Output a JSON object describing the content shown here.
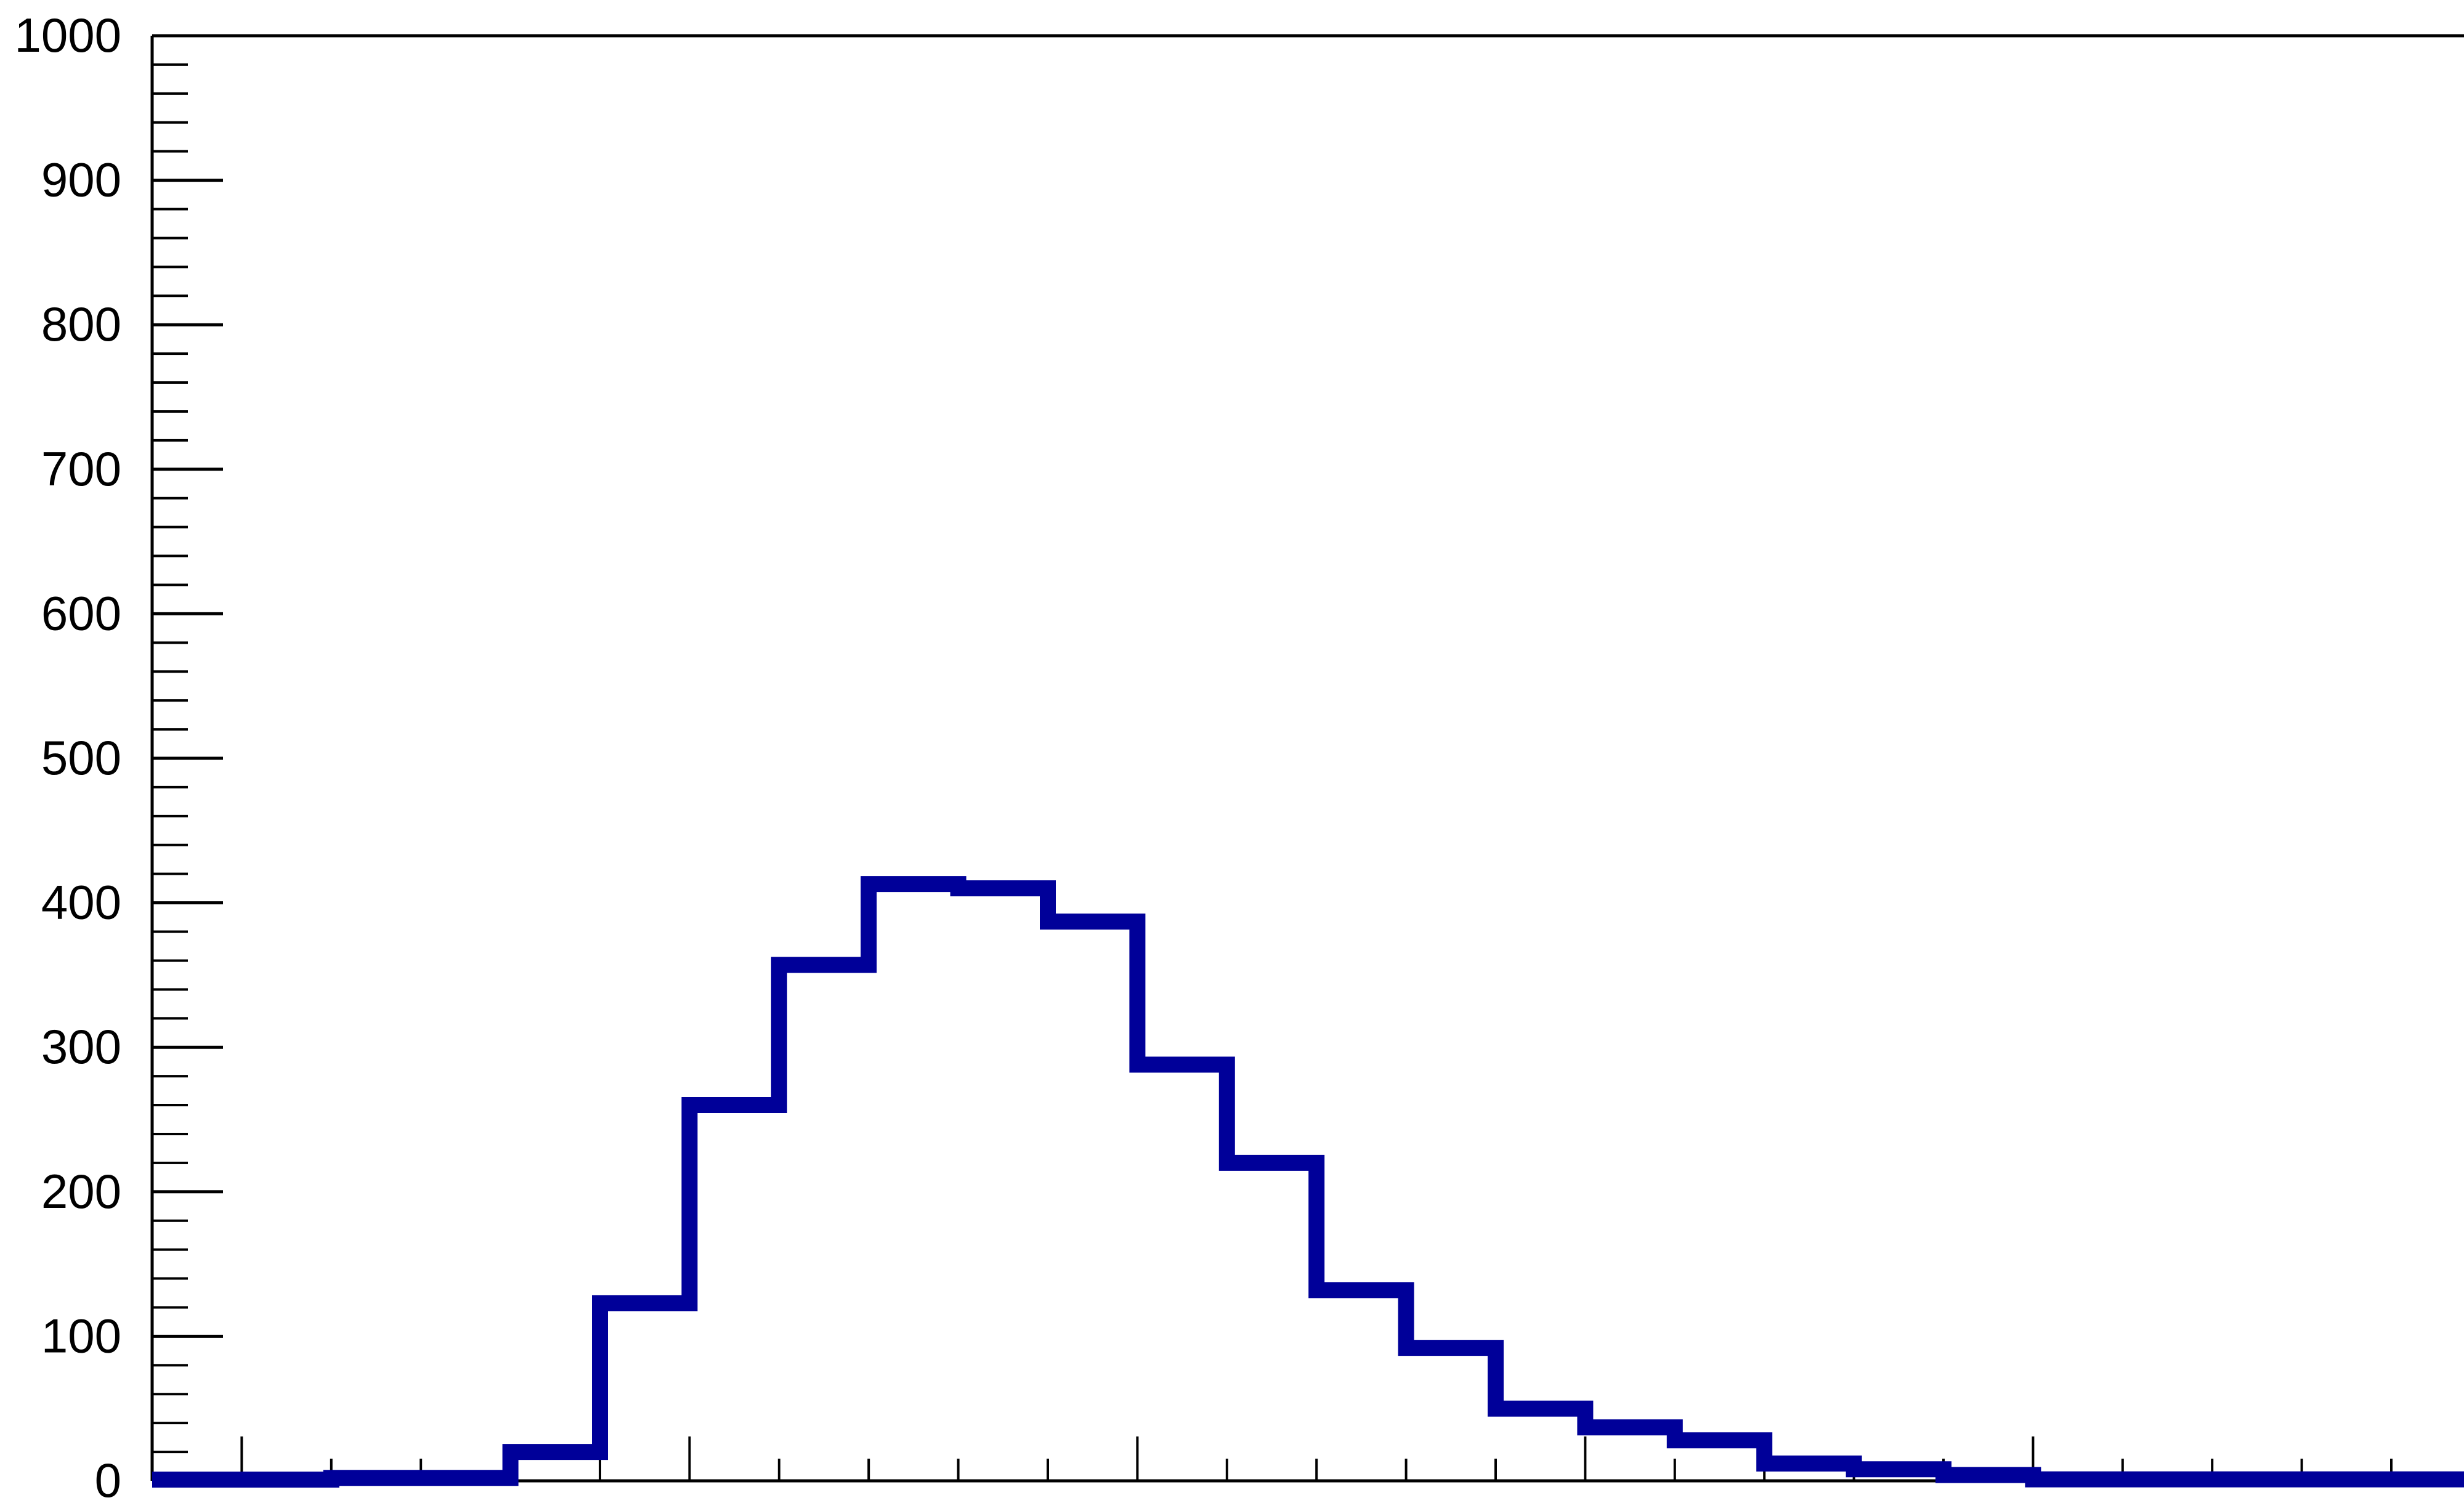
{
  "chart_data": {
    "type": "histogram",
    "title": "",
    "xlabel": "",
    "ylabel": "",
    "ylim": [
      0,
      1000
    ],
    "y_major_ticks": [
      0,
      100,
      200,
      300,
      400,
      500,
      600,
      700,
      800,
      900,
      1000
    ],
    "y_tick_labels": [
      "0",
      "100",
      "200",
      "300",
      "400",
      "500",
      "600",
      "700",
      "800",
      "900",
      "1000"
    ],
    "y_minor_step": 20,
    "bins_visible": 26,
    "bin_values": [
      0,
      0,
      2,
      2,
      20,
      123,
      260,
      357,
      413,
      410,
      387,
      288,
      220,
      132,
      92,
      50,
      37,
      28,
      12,
      8,
      4,
      1,
      1,
      1,
      1,
      1
    ],
    "x_major_tick_bins": [
      1,
      6,
      11,
      16,
      21
    ],
    "x_minor_tick_every_bins": 1,
    "grid": false,
    "legend": "none",
    "line_color": "#000099",
    "axis_color": "#000000"
  }
}
